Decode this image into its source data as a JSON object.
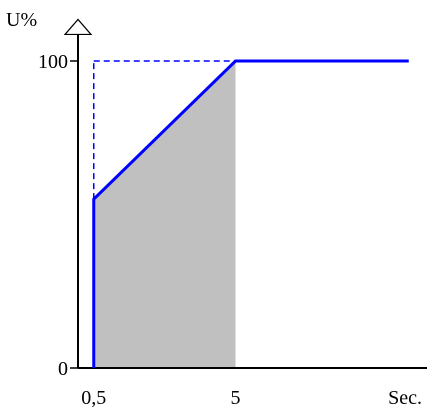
{
  "chart_data": {
    "type": "area",
    "title": "",
    "ylabel": "U%",
    "xlabel": "Sec.",
    "y_ticks": [
      {
        "value": 0,
        "label": "0"
      },
      {
        "value": 100,
        "label": "100"
      }
    ],
    "x_ticks": [
      {
        "value": 0.5,
        "label": "0,5"
      },
      {
        "value": 5,
        "label": "5"
      }
    ],
    "series": [
      {
        "points": [
          {
            "x": 0.5,
            "y": 0
          },
          {
            "x": 0.5,
            "y": 55
          },
          {
            "x": 5,
            "y": 100
          },
          {
            "x": 10.5,
            "y": 100
          }
        ]
      }
    ],
    "shaded_region": {
      "x_start": 0.5,
      "x_end": 5,
      "under_series": true
    },
    "reference_lines": [
      {
        "from": {
          "x": 0.5,
          "y": 55
        },
        "to": {
          "x": 0.5,
          "y": 100
        },
        "style": "dashed"
      },
      {
        "from": {
          "x": 0.5,
          "y": 100
        },
        "to": {
          "x": 5,
          "y": 100
        },
        "style": "dashed"
      }
    ],
    "xlim": [
      0,
      11
    ],
    "ylim": [
      0,
      108
    ],
    "grid": false,
    "legend": "none",
    "colors": {
      "line": "#0000ff",
      "area": "#c0c0c0",
      "axis": "#000000"
    }
  }
}
